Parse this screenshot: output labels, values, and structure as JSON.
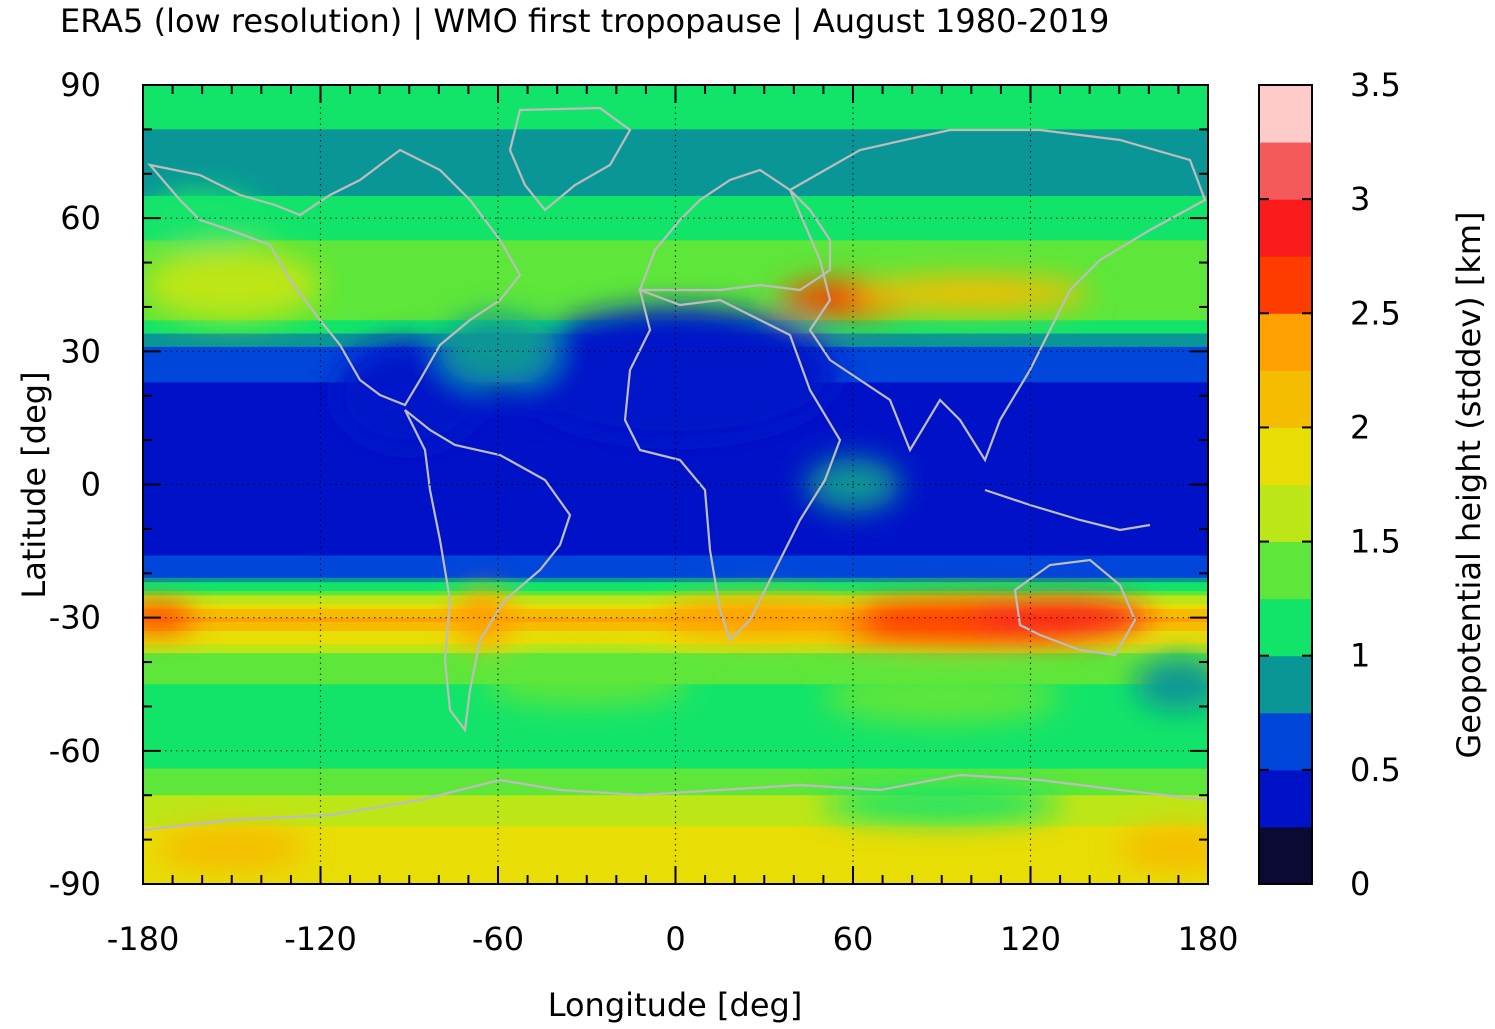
{
  "chart_data": {
    "type": "heatmap",
    "title": "ERA5 (low resolution) | WMO first tropopause | August 1980-2019",
    "xlabel": "Longitude [deg]",
    "ylabel": "Latitude [deg]",
    "xlim": [
      -180,
      180
    ],
    "ylim": [
      -90,
      90
    ],
    "xticks": [
      -180,
      -120,
      -60,
      0,
      60,
      120,
      180
    ],
    "yticks": [
      90,
      60,
      30,
      0,
      -30,
      -60,
      -90
    ],
    "grid": true,
    "colorbar": {
      "label": "Geopotential height (stddev) [km]",
      "range": [
        0,
        3.5
      ],
      "step": 0.25,
      "ticks": [
        0,
        0.5,
        1,
        1.5,
        2,
        2.5,
        3,
        3.5
      ],
      "colors": [
        "#0b0a33",
        "#0012c8",
        "#0046db",
        "#0a9696",
        "#12e46a",
        "#5ee63a",
        "#bde617",
        "#e8dd05",
        "#f5bd02",
        "#ffa102",
        "#ff3c00",
        "#fa1c1c",
        "#f55a5a",
        "#ffcaca"
      ]
    },
    "latitudes": [
      90,
      80,
      70,
      60,
      50,
      40,
      30,
      20,
      10,
      0,
      -10,
      -20,
      -30,
      -40,
      -50,
      -60,
      -70,
      -80,
      -90
    ],
    "zonal_pattern": [
      1.2,
      1.0,
      0.95,
      1.05,
      1.45,
      1.5,
      0.7,
      0.4,
      0.35,
      0.35,
      0.35,
      0.6,
      2.3,
      1.3,
      1.2,
      1.1,
      1.5,
      1.85,
      1.85
    ]
  }
}
